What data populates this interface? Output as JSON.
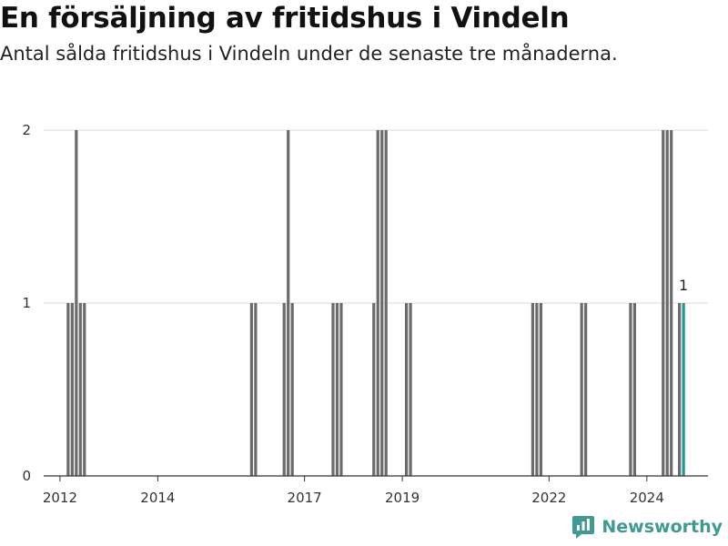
{
  "title": "En försäljning av fritidshus i Vindeln",
  "subtitle": "Antal sålda fritidshus i Vindeln under de senaste tre månaderna.",
  "brand": {
    "name": "Newsworthy",
    "icon": "newsworthy-logo-icon",
    "color": "#3f9a92"
  },
  "colors": {
    "bar": "#6b6b6e",
    "highlight": "#1f9a8c",
    "grid": "#d9d9d9",
    "axis": "#333333"
  },
  "chart_data": {
    "type": "bar",
    "title": "En försäljning av fritidshus i Vindeln",
    "subtitle": "Antal sålda fritidshus i Vindeln under de senaste tre månaderna.",
    "xlabel": "",
    "ylabel": "",
    "ylim": [
      0,
      2
    ],
    "y_ticks": [
      0,
      1,
      2
    ],
    "x_range": [
      "2011-09",
      "2025-04"
    ],
    "x_ticks": [
      "2012",
      "2014",
      "2017",
      "2019",
      "2022",
      "2024"
    ],
    "x_tick_dates": [
      "2012-01",
      "2014-01",
      "2017-01",
      "2019-01",
      "2022-01",
      "2024-01"
    ],
    "grid": true,
    "legend": "none",
    "x": [
      "2012-03",
      "2012-04",
      "2012-05",
      "2012-06",
      "2012-07",
      "2015-12",
      "2016-01",
      "2016-08",
      "2016-09",
      "2016-10",
      "2017-08",
      "2017-09",
      "2017-10",
      "2018-06",
      "2018-07",
      "2018-08",
      "2018-09",
      "2019-02",
      "2019-03",
      "2021-09",
      "2021-10",
      "2021-11",
      "2022-09",
      "2022-10",
      "2023-09",
      "2023-10",
      "2024-05",
      "2024-06",
      "2024-07",
      "2024-09",
      "2024-10"
    ],
    "values": [
      1,
      1,
      2,
      1,
      1,
      1,
      1,
      1,
      2,
      1,
      1,
      1,
      1,
      1,
      2,
      2,
      2,
      1,
      1,
      1,
      1,
      1,
      1,
      1,
      1,
      1,
      2,
      2,
      2,
      1,
      1
    ],
    "highlight": {
      "x": "2024-10",
      "value": 1,
      "label": "1"
    }
  }
}
